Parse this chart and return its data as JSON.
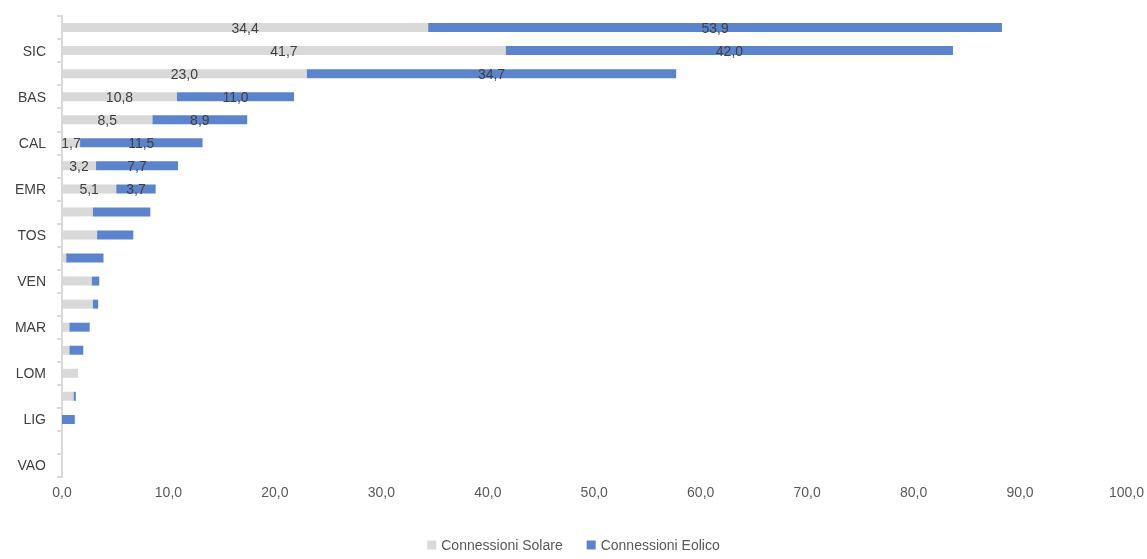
{
  "chart_data": {
    "type": "bar",
    "orientation": "horizontal",
    "stacked": true,
    "grid": false,
    "legend": "bottom",
    "categories": [
      null,
      "SIC",
      null,
      "BAS",
      null,
      "CAL",
      null,
      "EMR",
      null,
      "TOS",
      null,
      "VEN",
      null,
      "MAR",
      null,
      "LOM",
      null,
      "LIG",
      null,
      "VAO"
    ],
    "xlim": [
      0,
      100
    ],
    "xticks": [
      {
        "value": 0,
        "label": "0,0"
      },
      {
        "value": 10,
        "label": "10,0"
      },
      {
        "value": 20,
        "label": "20,0"
      },
      {
        "value": 30,
        "label": "30,0"
      },
      {
        "value": 40,
        "label": "40,0"
      },
      {
        "value": 50,
        "label": "50,0"
      },
      {
        "value": 60,
        "label": "60,0"
      },
      {
        "value": 70,
        "label": "70,0"
      },
      {
        "value": 80,
        "label": "80,0"
      },
      {
        "value": 90,
        "label": "90,0"
      },
      {
        "value": 100,
        "label": "100,0"
      }
    ],
    "series": [
      {
        "name": "Connessioni Solare",
        "color": "#d9d9d9",
        "values": [
          34.4,
          41.7,
          23.0,
          10.8,
          8.5,
          1.7,
          3.2,
          5.1,
          2.9,
          3.3,
          0.4,
          2.8,
          2.9,
          0.7,
          0.7,
          1.5,
          1.1,
          0,
          0,
          0
        ],
        "value_labels": [
          "34,4",
          "41,7",
          "23,0",
          "10,8",
          "8,5",
          "1,7",
          "3,2",
          "5,1",
          null,
          null,
          null,
          null,
          null,
          null,
          null,
          null,
          null,
          null,
          null,
          null
        ]
      },
      {
        "name": "Connessioni Eolico",
        "color": "#5b84cc",
        "values": [
          53.9,
          42.0,
          34.7,
          11.0,
          8.9,
          11.5,
          7.7,
          3.7,
          5.4,
          3.4,
          3.5,
          0.7,
          0.5,
          1.9,
          1.3,
          0,
          0.2,
          1.2,
          0,
          0
        ],
        "value_labels": [
          "53,9",
          "42,0",
          "34,7",
          "11,0",
          "8,9",
          "11,5",
          "7,7",
          "3,7",
          null,
          null,
          null,
          null,
          null,
          null,
          null,
          null,
          null,
          null,
          null,
          null
        ]
      }
    ]
  }
}
